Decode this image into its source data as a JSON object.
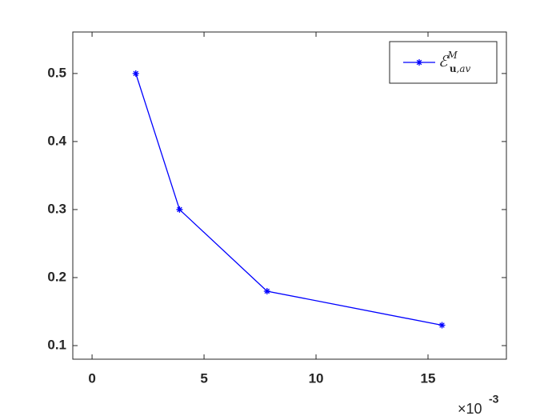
{
  "chart_data": {
    "type": "line",
    "x": [
      1.953,
      3.906,
      7.8125,
      15.625
    ],
    "series": [
      {
        "name": "ℰ",
        "name_sup": "M",
        "name_sub_bold": "u",
        "name_sub": ",av",
        "color": "#0000ff",
        "marker": "asterisk",
        "values": [
          0.5,
          0.3,
          0.18,
          0.13
        ]
      }
    ],
    "xlim": [
      -0.86,
      18.5
    ],
    "xticks": [
      0,
      5,
      10,
      15
    ],
    "x_exponent_label": {
      "base": "×10",
      "exponent": "-3"
    },
    "ylim": [
      0.08,
      0.561
    ],
    "yticks": [
      0.1,
      0.2,
      0.3,
      0.4,
      0.5
    ],
    "grid": false,
    "legend": "top-right"
  }
}
